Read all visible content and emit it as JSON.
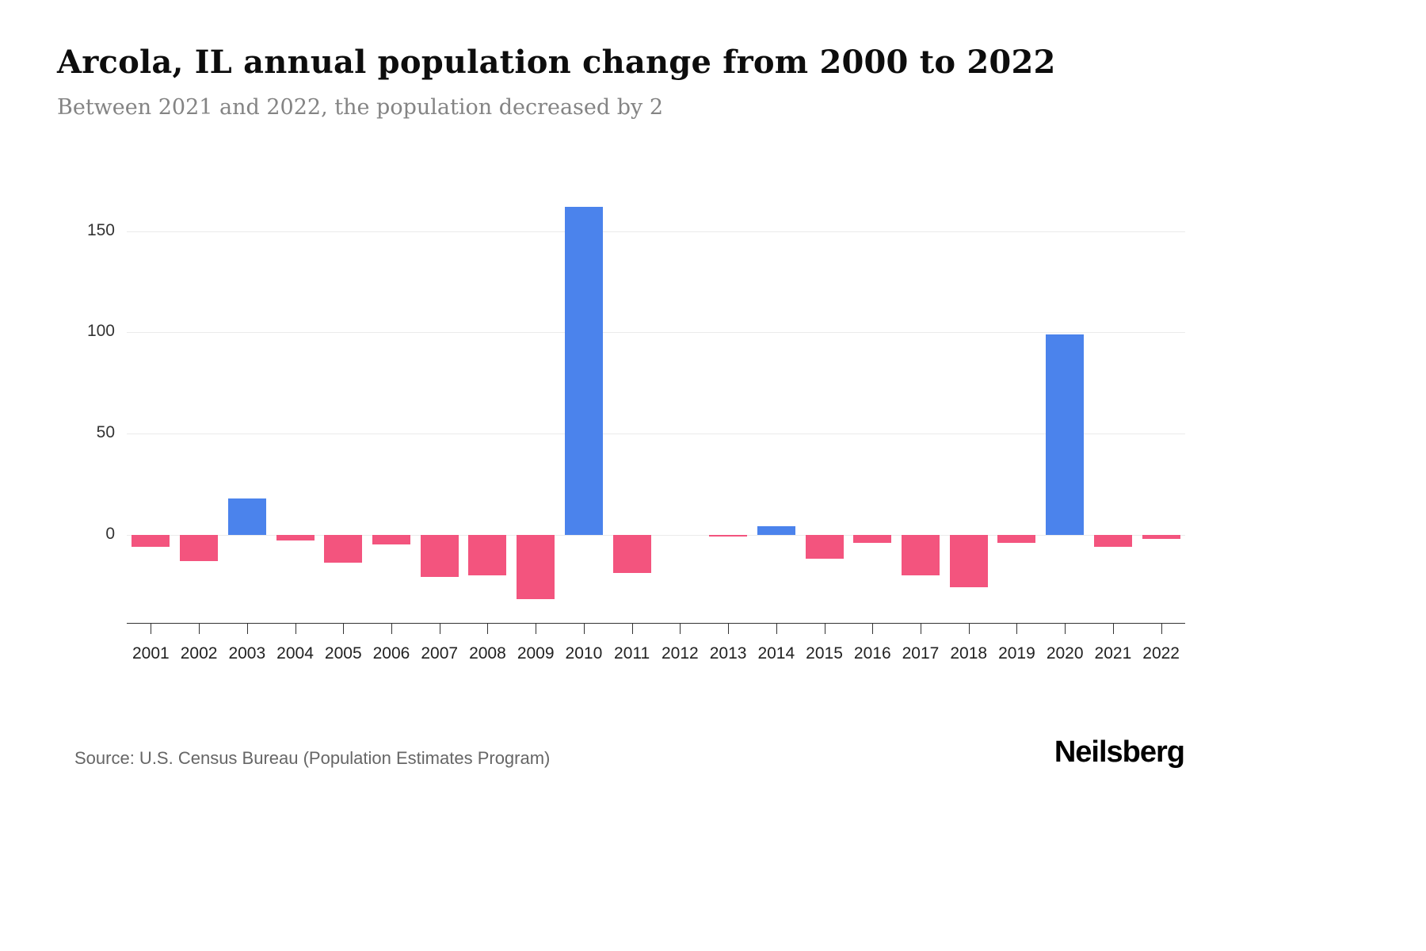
{
  "header": {
    "title": "Arcola, IL annual population change from 2000 to 2022",
    "subtitle": "Between 2021 and 2022, the population decreased by 2"
  },
  "chart_data": {
    "type": "bar",
    "title": "Arcola, IL annual population change from 2000 to 2022",
    "categories": [
      "2001",
      "2002",
      "2003",
      "2004",
      "2005",
      "2006",
      "2007",
      "2008",
      "2009",
      "2010",
      "2011",
      "2012",
      "2013",
      "2014",
      "2015",
      "2016",
      "2017",
      "2018",
      "2019",
      "2020",
      "2021",
      "2022"
    ],
    "values": [
      -6,
      -13,
      18,
      -3,
      -14,
      -5,
      -21,
      -20,
      -32,
      162,
      -19,
      0,
      -1,
      4,
      -12,
      -4,
      -20,
      -26,
      -4,
      99,
      -6,
      -2
    ],
    "xlabel": "",
    "ylabel": "",
    "yticks": [
      0,
      50,
      100,
      150
    ],
    "ylim": [
      -44,
      175
    ],
    "grid": true,
    "legend_position": "none",
    "colors": {
      "positive": "#4b83ec",
      "negative": "#f3547e"
    }
  },
  "footer": {
    "source": "Source: U.S. Census Bureau (Population Estimates Program)",
    "logo": "Neilsberg"
  }
}
